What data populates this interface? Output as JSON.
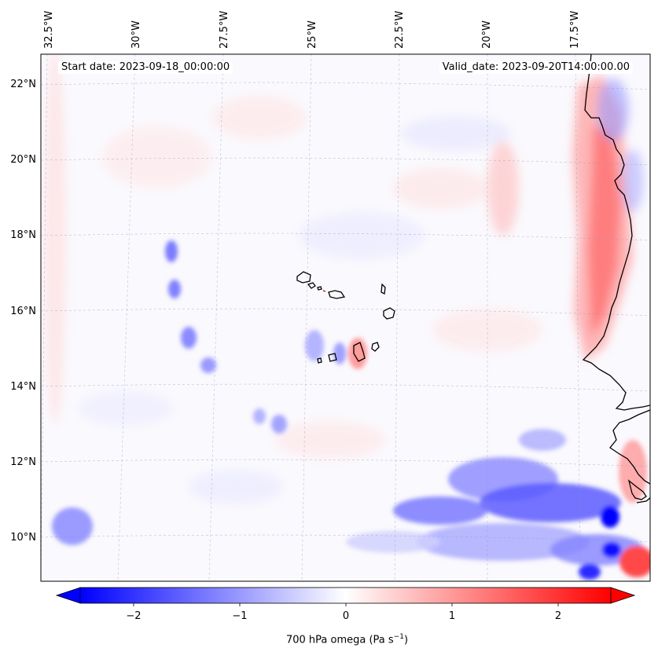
{
  "map": {
    "projection": "Lambert conformal",
    "extent": {
      "lon_min": -33.0,
      "lon_max": -15.5,
      "lat_min": 8.8,
      "lat_max": 22.8
    },
    "start_date_label": "Start date: 2023-09-18_00:00:00",
    "valid_date_label": "Valid_date: 2023-09-20T14:00:00.00",
    "longitude_labels": [
      "32.5°W",
      "30°W",
      "27.5°W",
      "25°W",
      "22.5°W",
      "20°W",
      "17.5°W"
    ],
    "latitude_labels": [
      "22°N",
      "20°N",
      "18°N",
      "16°N",
      "14°N",
      "12°N",
      "10°N"
    ],
    "coastline_features": [
      "Cabo Verde islands",
      "West African coast (Mauritania, Senegal, Guinea-Bissau, Guinea)"
    ],
    "field": "700 hPa vertical velocity (omega)"
  },
  "colorbar": {
    "colormap": "bwr",
    "vmin": -2.5,
    "vmax": 2.5,
    "extend": "both",
    "tick_labels": [
      "−2",
      "−1",
      "0",
      "1",
      "2"
    ],
    "tick_values": [
      -2,
      -1,
      0,
      1,
      2
    ],
    "label_main": "700 hPa omega (Pa s",
    "label_exp": "−1",
    "label_close": ")"
  },
  "colors": {
    "negative": "#0000ff",
    "neutral": "#ffffff",
    "positive": "#ff0000",
    "coast": "#000000"
  }
}
